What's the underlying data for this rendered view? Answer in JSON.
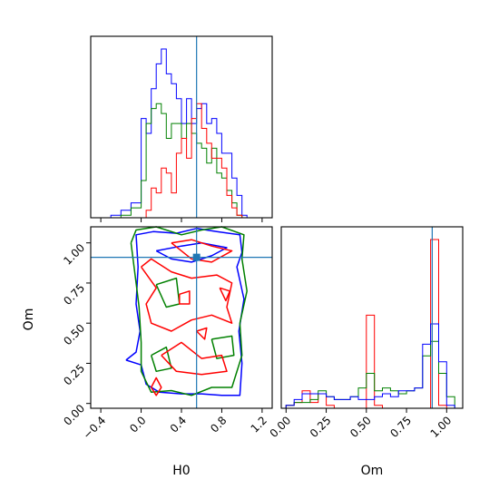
{
  "chart_data": {
    "type": "corner",
    "colors": {
      "red": "#ff0000",
      "green": "#008000",
      "blue": "#0000ff",
      "truth": "#1f77b4"
    },
    "parameters": [
      "H0",
      "Om"
    ],
    "truth": {
      "H0": 0.55,
      "Om": 0.91
    },
    "panels": [
      {
        "id": "hist_H0",
        "type": "histogram",
        "xlim": [
          -0.5,
          1.3
        ],
        "bin_edges": [
          -0.4,
          -0.3,
          -0.2,
          -0.1,
          0.0,
          0.05,
          0.1,
          0.15,
          0.2,
          0.25,
          0.3,
          0.35,
          0.4,
          0.45,
          0.5,
          0.55,
          0.6,
          0.65,
          0.7,
          0.75,
          0.8,
          0.85,
          0.9,
          0.95,
          1.0,
          1.05,
          1.1
        ],
        "series": [
          {
            "color": "blue",
            "values": [
              0.0,
              0.05,
              0.15,
              0.3,
              2.0,
              1.7,
              2.6,
              3.1,
              3.4,
              2.9,
              2.7,
              2.4,
              1.9,
              2.4,
              1.9,
              2.2,
              2.3,
              1.9,
              2.0,
              1.7,
              1.3,
              1.3,
              0.8,
              0.45,
              0.05,
              0.0
            ]
          },
          {
            "color": "green",
            "values": [
              0.0,
              0.0,
              0.05,
              0.2,
              0.75,
              1.9,
              2.2,
              2.3,
              2.1,
              1.6,
              1.9,
              1.9,
              1.6,
              1.9,
              1.7,
              1.5,
              1.4,
              1.1,
              1.4,
              0.9,
              0.8,
              0.55,
              0.3,
              0.05,
              0.0,
              0.0
            ]
          },
          {
            "color": "red",
            "values": [
              0.0,
              0.0,
              0.0,
              0.0,
              0.0,
              0.15,
              0.6,
              0.5,
              1.0,
              0.9,
              0.5,
              1.3,
              1.6,
              1.2,
              2.0,
              2.3,
              1.8,
              1.5,
              1.2,
              1.2,
              1.0,
              0.45,
              0.2,
              0.05,
              0.0,
              0.0
            ]
          }
        ]
      },
      {
        "id": "hist_Om",
        "type": "histogram",
        "xlim": [
          -0.03,
          1.1
        ],
        "xticks": [
          "0.00",
          "0.25",
          "0.50",
          "0.75",
          "1.00"
        ],
        "xlabel": "Om",
        "bin_edges": [
          0.0,
          0.05,
          0.1,
          0.15,
          0.2,
          0.25,
          0.3,
          0.35,
          0.4,
          0.45,
          0.5,
          0.55,
          0.6,
          0.65,
          0.7,
          0.75,
          0.8,
          0.85,
          0.9,
          0.95,
          1.0,
          1.05,
          1.1
        ],
        "series": [
          {
            "color": "red",
            "values": [
              0.05,
              0.1,
              0.3,
              0.1,
              0.25,
              0.05,
              0.0,
              0.0,
              0.0,
              0.0,
              1.6,
              0.05,
              0.0,
              0.0,
              0.0,
              0.0,
              0.0,
              0.0,
              2.9,
              0.05,
              0.0,
              0.0
            ]
          },
          {
            "color": "green",
            "values": [
              0.05,
              0.1,
              0.1,
              0.15,
              0.3,
              0.2,
              0.15,
              0.15,
              0.2,
              0.35,
              0.6,
              0.3,
              0.35,
              0.3,
              0.25,
              0.3,
              0.35,
              0.9,
              1.15,
              0.6,
              0.2,
              0.0
            ]
          },
          {
            "color": "blue",
            "values": [
              0.05,
              0.15,
              0.25,
              0.25,
              0.25,
              0.2,
              0.15,
              0.15,
              0.2,
              0.15,
              0.15,
              0.2,
              0.25,
              0.2,
              0.3,
              0.3,
              0.35,
              1.1,
              1.45,
              0.8,
              0.05,
              0.0
            ]
          }
        ]
      },
      {
        "id": "scatter_H0_Om",
        "type": "contour",
        "xlim": [
          -0.5,
          1.3
        ],
        "ylim": [
          -0.03,
          1.1
        ],
        "xticks": [
          "−0.4",
          "0.0",
          "0.4",
          "0.8",
          "1.2"
        ],
        "yticks": [
          "0.00",
          "0.25",
          "0.50",
          "0.75",
          "1.00"
        ],
        "xlabel": "H0",
        "ylabel": "Om",
        "series": [
          {
            "color": "blue",
            "paths": [
              [
                [
                  -0.15,
                  0.27
                ],
                [
                  0.0,
                  0.24
                ],
                [
                  0.05,
                  0.12
                ],
                [
                  0.18,
                  0.07
                ],
                [
                  0.4,
                  0.06
                ],
                [
                  0.6,
                  0.06
                ],
                [
                  0.8,
                  0.05
                ],
                [
                  0.98,
                  0.05
                ],
                [
                  1.0,
                  0.25
                ],
                [
                  0.97,
                  0.45
                ],
                [
                  1.02,
                  0.65
                ],
                [
                  0.95,
                  0.85
                ],
                [
                  1.0,
                  0.94
                ],
                [
                  0.98,
                  1.05
                ],
                [
                  0.75,
                  1.07
                ],
                [
                  0.55,
                  1.09
                ],
                [
                  0.35,
                  1.06
                ],
                [
                  0.12,
                  1.07
                ],
                [
                  -0.05,
                  1.05
                ],
                [
                  -0.03,
                  0.85
                ],
                [
                  -0.05,
                  0.62
                ],
                [
                  -0.01,
                  0.45
                ],
                [
                  -0.05,
                  0.32
                ],
                [
                  -0.15,
                  0.27
                ]
              ],
              [
                [
                  0.15,
                  0.95
                ],
                [
                  0.4,
                  0.98
                ],
                [
                  0.6,
                  1.0
                ],
                [
                  0.85,
                  0.97
                ],
                [
                  0.7,
                  0.92
                ],
                [
                  0.5,
                  0.88
                ],
                [
                  0.3,
                  0.9
                ],
                [
                  0.15,
                  0.95
                ]
              ]
            ]
          },
          {
            "color": "green",
            "paths": [
              [
                [
                  -0.1,
                  1.0
                ],
                [
                  -0.05,
                  0.75
                ],
                [
                  -0.02,
                  0.6
                ],
                [
                  0.0,
                  0.38
                ],
                [
                  0.0,
                  0.2
                ],
                [
                  0.1,
                  0.07
                ],
                [
                  0.3,
                  0.08
                ],
                [
                  0.5,
                  0.05
                ],
                [
                  0.7,
                  0.1
                ],
                [
                  0.9,
                  0.1
                ],
                [
                  1.0,
                  0.3
                ],
                [
                  0.98,
                  0.5
                ],
                [
                  1.05,
                  0.7
                ],
                [
                  1.0,
                  0.9
                ],
                [
                  1.02,
                  1.05
                ],
                [
                  0.8,
                  1.1
                ],
                [
                  0.6,
                  1.08
                ],
                [
                  0.4,
                  1.05
                ],
                [
                  0.15,
                  1.1
                ],
                [
                  -0.05,
                  1.08
                ],
                [
                  -0.1,
                  1.0
                ]
              ],
              [
                [
                  0.15,
                  0.74
                ],
                [
                  0.35,
                  0.78
                ],
                [
                  0.38,
                  0.62
                ],
                [
                  0.25,
                  0.6
                ],
                [
                  0.15,
                  0.74
                ]
              ],
              [
                [
                  0.7,
                  0.4
                ],
                [
                  0.9,
                  0.42
                ],
                [
                  0.92,
                  0.3
                ],
                [
                  0.75,
                  0.28
                ],
                [
                  0.7,
                  0.4
                ]
              ],
              [
                [
                  0.1,
                  0.3
                ],
                [
                  0.25,
                  0.35
                ],
                [
                  0.3,
                  0.22
                ],
                [
                  0.15,
                  0.2
                ],
                [
                  0.1,
                  0.3
                ]
              ]
            ]
          },
          {
            "color": "red",
            "paths": [
              [
                [
                  0.0,
                  0.85
                ],
                [
                  0.15,
                  0.72
                ],
                [
                  0.05,
                  0.62
                ],
                [
                  0.1,
                  0.5
                ],
                [
                  0.3,
                  0.45
                ],
                [
                  0.5,
                  0.52
                ],
                [
                  0.7,
                  0.55
                ],
                [
                  0.9,
                  0.5
                ],
                [
                  0.85,
                  0.6
                ],
                [
                  0.9,
                  0.75
                ],
                [
                  0.75,
                  0.8
                ],
                [
                  0.5,
                  0.78
                ],
                [
                  0.3,
                  0.82
                ],
                [
                  0.1,
                  0.9
                ],
                [
                  0.0,
                  0.85
                ]
              ],
              [
                [
                  0.2,
                  0.3
                ],
                [
                  0.4,
                  0.38
                ],
                [
                  0.6,
                  0.28
                ],
                [
                  0.8,
                  0.3
                ],
                [
                  0.85,
                  0.2
                ],
                [
                  0.6,
                  0.18
                ],
                [
                  0.35,
                  0.2
                ],
                [
                  0.2,
                  0.3
                ]
              ],
              [
                [
                  0.3,
                  1.0
                ],
                [
                  0.5,
                  1.02
                ],
                [
                  0.7,
                  0.98
                ],
                [
                  0.9,
                  0.95
                ],
                [
                  0.7,
                  0.88
                ],
                [
                  0.5,
                  0.9
                ],
                [
                  0.3,
                  1.0
                ]
              ],
              [
                [
                  0.1,
                  0.1
                ],
                [
                  0.15,
                  0.16
                ],
                [
                  0.2,
                  0.1
                ],
                [
                  0.15,
                  0.05
                ],
                [
                  0.1,
                  0.1
                ]
              ],
              [
                [
                  0.38,
                  0.68
                ],
                [
                  0.48,
                  0.7
                ],
                [
                  0.48,
                  0.62
                ],
                [
                  0.38,
                  0.62
                ],
                [
                  0.38,
                  0.68
                ]
              ],
              [
                [
                  0.78,
                  0.72
                ],
                [
                  0.88,
                  0.7
                ],
                [
                  0.84,
                  0.64
                ],
                [
                  0.78,
                  0.72
                ]
              ],
              [
                [
                  0.55,
                  0.45
                ],
                [
                  0.65,
                  0.47
                ],
                [
                  0.63,
                  0.4
                ],
                [
                  0.55,
                  0.45
                ]
              ]
            ]
          }
        ],
        "markers": [
          {
            "color": "truth",
            "x": 0.55,
            "y": 0.91
          }
        ]
      }
    ]
  }
}
